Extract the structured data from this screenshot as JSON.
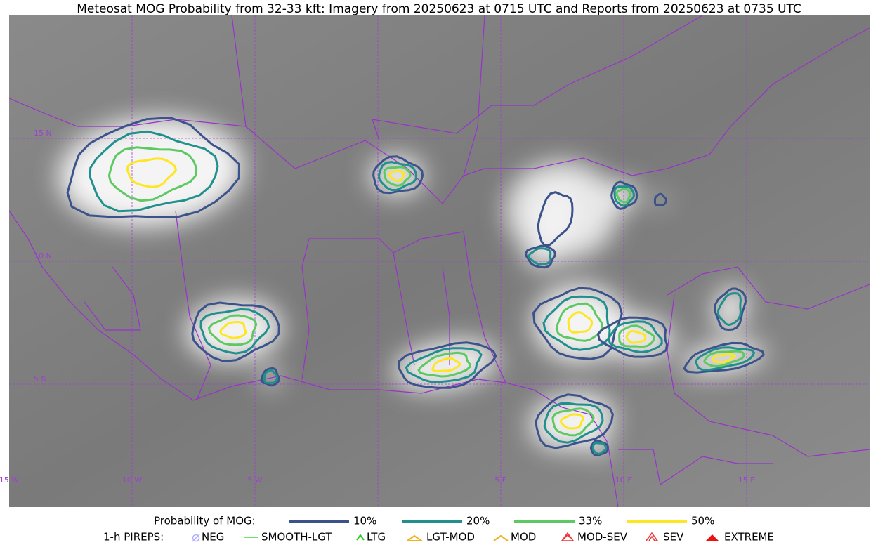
{
  "title": "Meteosat MOG Probability from 32-33 kft: Imagery from 20250623 at 0715 UTC and Reports from 20250623 at 0735 UTC",
  "grid_labels": {
    "lat": [
      "15 N",
      "10 N",
      "5 N"
    ],
    "lon": [
      "15 W",
      "10 W",
      "5 W",
      "5 E",
      "10 E",
      "15 E"
    ]
  },
  "legend": {
    "probability": {
      "label": "Probability of MOG:",
      "levels": [
        {
          "name": "10%",
          "color": "#3b528b"
        },
        {
          "name": "20%",
          "color": "#21908d"
        },
        {
          "name": "33%",
          "color": "#5ec962"
        },
        {
          "name": "50%",
          "color": "#fde725"
        }
      ]
    },
    "pireps": {
      "label": "1-h PIREPS:",
      "items": [
        "NEG",
        "SMOOTH-LGT",
        "LTG",
        "LGT-MOD",
        "MOD",
        "MOD-SEV",
        "SEV",
        "EXTREME"
      ]
    }
  }
}
